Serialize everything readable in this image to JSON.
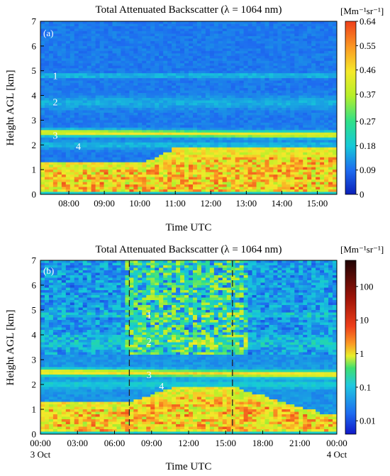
{
  "chart_data": [
    {
      "type": "heatmap",
      "panel": "(a)",
      "title": "Total Attenuated Backscatter (λ = 1064 nm)",
      "xlabel": "Time UTC",
      "ylabel": "Height AGL [km]",
      "x_ticks": [
        "08:00",
        "09:00",
        "10:00",
        "11:00",
        "12:00",
        "13:00",
        "14:00",
        "15:00"
      ],
      "x_tick_hours": [
        8,
        9,
        10,
        11,
        12,
        13,
        14,
        15
      ],
      "xlim_hours": [
        7.2,
        15.55
      ],
      "y_ticks": [
        "0",
        "1",
        "2",
        "3",
        "4",
        "5",
        "6",
        "7"
      ],
      "ylim": [
        0,
        7
      ],
      "colorbar": {
        "unit": "[Mm⁻¹sr⁻¹]",
        "scale": "linear",
        "range": [
          0,
          0.64
        ],
        "ticks": [
          "0",
          "0.09",
          "0.18",
          "0.27",
          "0.37",
          "0.46",
          "0.55",
          "0.64"
        ]
      },
      "layers": [
        {
          "label": "1",
          "height_km": 4.8
        },
        {
          "label": "2",
          "height_km": 3.75
        },
        {
          "label": "3",
          "height_km": 2.4
        },
        {
          "label": "4",
          "height_km": 1.95
        }
      ]
    },
    {
      "type": "heatmap",
      "panel": "(b)",
      "title": "Total Attenuated Backscatter (λ = 1064 nm)",
      "xlabel": "Time UTC",
      "ylabel": "Height AGL [km]",
      "x_ticks": [
        "00:00",
        "03:00",
        "06:00",
        "09:00",
        "12:00",
        "15:00",
        "18:00",
        "21:00",
        "00:00"
      ],
      "x_tick_hours": [
        0,
        3,
        6,
        9,
        12,
        15,
        18,
        21,
        24
      ],
      "x_dates": [
        {
          "label": "3 Oct",
          "hour": 0
        },
        {
          "label": "4 Oct",
          "hour": 24
        }
      ],
      "xlim_hours": [
        0,
        24
      ],
      "y_ticks": [
        "0",
        "1",
        "2",
        "3",
        "4",
        "5",
        "6",
        "7"
      ],
      "ylim": [
        0,
        7
      ],
      "vlines_hours": [
        7.2,
        15.55
      ],
      "colorbar": {
        "unit": "[Mm⁻¹sr⁻¹]",
        "scale": "log",
        "range": [
          0.004,
          600
        ],
        "ticks": [
          "0.01",
          "0.1",
          "1",
          "10",
          "100"
        ],
        "tick_values": [
          0.01,
          0.1,
          1,
          10,
          100
        ]
      },
      "layers": [
        {
          "label": "1",
          "height_km": 4.8
        },
        {
          "label": "2",
          "height_km": 3.75
        },
        {
          "label": "3",
          "height_km": 2.4
        },
        {
          "label": "4",
          "height_km": 1.95
        }
      ]
    }
  ]
}
